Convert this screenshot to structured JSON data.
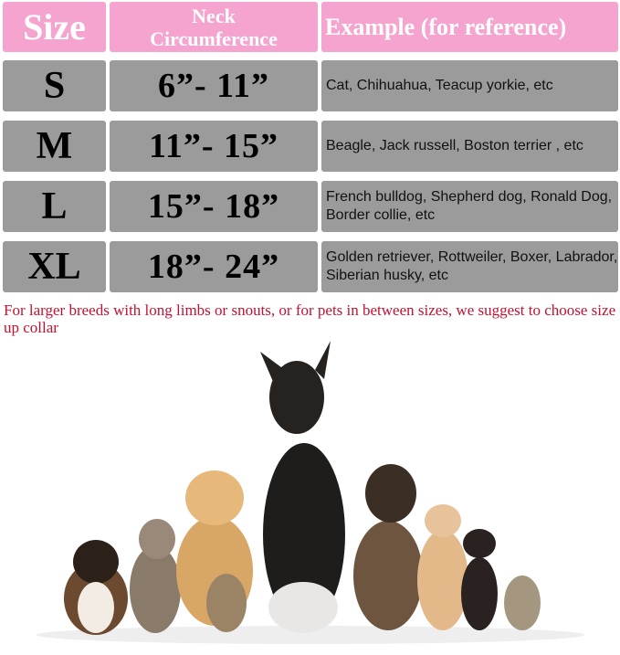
{
  "header": {
    "size": "Size",
    "neck_line1": "Neck",
    "neck_line2": "Circumference",
    "example": "Example (for reference)"
  },
  "rows": [
    {
      "size": "S",
      "neck": "6”- 11”",
      "example": "Cat, Chihuahua, Teacup yorkie, etc"
    },
    {
      "size": "M",
      "neck": "11”- 15”",
      "example": "Beagle, Jack russell, Boston terrier , etc"
    },
    {
      "size": "L",
      "neck": "15”- 18”",
      "example": "French bulldog, Shepherd dog, Ronald Dog, Border collie, etc"
    },
    {
      "size": "XL",
      "neck": "18”- 24”",
      "example": "Golden retriever, Rottweiler, Boxer, Labrador, Siberian husky, etc"
    }
  ],
  "note": "For larger breeds with long limbs or snouts, or for pets in between sizes, we suggest to choose size up collar",
  "colors": {
    "header_pink": "#f5a3cf",
    "row_gray": "#9b9b9b",
    "note_red": "#c8102e"
  }
}
